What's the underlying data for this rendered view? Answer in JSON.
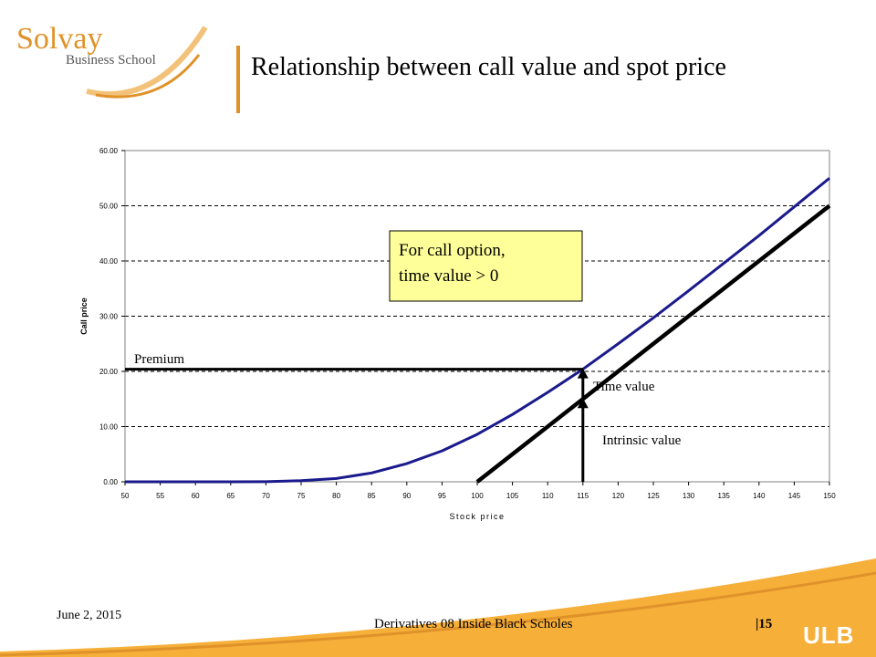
{
  "slide": {
    "logo_name": "Solvay",
    "logo_sub": "Business School",
    "title": "Relationship between call value and spot price",
    "date": "June 2, 2015",
    "footer_text": "Derivatives 08 Inside Black Scholes",
    "page_number": "|15",
    "footer_logo": "ULB",
    "accent_color": "#e0922a"
  },
  "chart_data": {
    "type": "line",
    "xlabel": "Stock price",
    "ylabel": "Call price",
    "xlim": [
      50,
      150
    ],
    "ylim": [
      0,
      60
    ],
    "x_ticks": [
      50,
      55,
      60,
      65,
      70,
      75,
      80,
      85,
      90,
      95,
      100,
      105,
      110,
      115,
      120,
      125,
      130,
      135,
      140,
      145,
      150
    ],
    "y_ticks": [
      0,
      10,
      20,
      30,
      40,
      50,
      60
    ],
    "y_tick_labels": [
      "0.00",
      "10.00",
      "20.00",
      "30.00",
      "40.00",
      "50.00",
      "60.00"
    ],
    "grid": "horizontal dashed",
    "series": [
      {
        "color": "#1a1a8c",
        "x": [
          50,
          55,
          60,
          65,
          70,
          75,
          80,
          85,
          90,
          95,
          100,
          105,
          110,
          115,
          120,
          125,
          130,
          135,
          140,
          145,
          150
        ],
        "y": [
          0,
          0,
          0,
          0,
          0.03,
          0.2,
          0.6,
          1.6,
          3.3,
          5.6,
          8.6,
          12.2,
          16.2,
          20.4,
          25.0,
          29.7,
          34.6,
          39.6,
          44.6,
          49.8,
          55.0
        ]
      },
      {
        "color": "#000000",
        "x": [
          100,
          150
        ],
        "y": [
          0,
          50
        ]
      }
    ],
    "premium_level": {
      "x": [
        50,
        115
      ],
      "y": 20.4
    },
    "annotations": {
      "callout": [
        "For call option,",
        "time value > 0"
      ],
      "premium": "Premium",
      "time_value": "Time value",
      "intrinsic_value": "Intrinsic value"
    },
    "arrows": [
      {
        "name": "time-value-arrow",
        "x": 115,
        "from": 15,
        "to": 20.4
      },
      {
        "name": "intrinsic-value-arrow",
        "x": 115,
        "from": 0,
        "to": 15
      }
    ]
  }
}
